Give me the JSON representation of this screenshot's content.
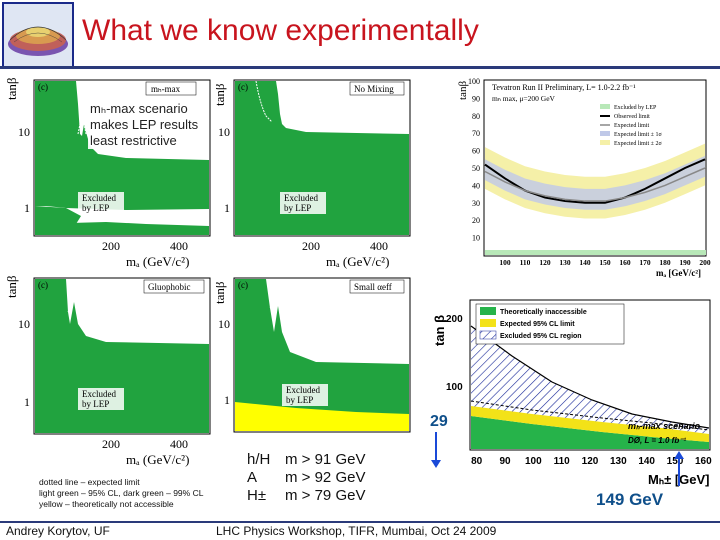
{
  "slide": {
    "title": "What we know experimentally",
    "annotation_lines": [
      "mₕ-max scenario",
      "makes LEP results",
      "least restrictive"
    ],
    "legend_note_lines": [
      "dotted line – expected limit",
      "light green – 95% CL, dark green – 99% CL",
      "yellow – theoretically not accessible"
    ],
    "mass_limits": [
      {
        "particle": "h/H",
        "limit": "m > 91 GeV"
      },
      {
        "particle": "A",
        "limit": "m > 92 GeV"
      },
      {
        "particle": "H±",
        "limit": "m > 79 GeV"
      }
    ],
    "callout_low": "29",
    "callout_high": "149 GeV",
    "footer_left": "Andrey Korytov, UF",
    "footer_center": "LHC Physics Workshop, TIFR, Mumbai, Oct 24 2009"
  },
  "lep_panels": [
    {
      "label": "(c)",
      "tag": "mₕ-max",
      "ylabel": "tanβ",
      "xlabel": "mₐ (GeV/c²)",
      "excluded": [
        "Excluded",
        "by LEP"
      ],
      "yticks": [
        "10",
        "1"
      ],
      "xticks": [
        "200",
        "400"
      ]
    },
    {
      "label": "(c)",
      "tag": "No Mixing",
      "ylabel": "tanβ",
      "xlabel": "mₐ (GeV/c²)",
      "excluded": [
        "Excluded",
        "by LEP"
      ],
      "yticks": [
        "10",
        "1"
      ],
      "xticks": [
        "200",
        "400"
      ]
    },
    {
      "label": "(c)",
      "tag": "Gluophobic",
      "ylabel": "tanβ",
      "xlabel": "mₐ (GeV/c²)",
      "excluded": [
        "Excluded",
        "by LEP"
      ],
      "yticks": [
        "10",
        "1"
      ],
      "xticks": [
        "200",
        "400"
      ]
    },
    {
      "label": "(c)",
      "tag": "Small αeff",
      "ylabel": "tanβ",
      "xlabel": "mₐ (GeV/c²)",
      "excluded": [
        "Excluded",
        "by LEP"
      ],
      "yticks": [
        "10",
        "1"
      ],
      "xticks": [
        "200",
        "400"
      ]
    }
  ],
  "tevatron_plot": {
    "title": "Tevatron Run II Preliminary, L= 1.0-2.2 fb⁻¹",
    "subtitle": "mₕ max, μ=200 GeV",
    "ylabel": "tanβ",
    "xlabel": "mₐ [GeV/c²]",
    "legend": [
      "Excluded by LEP",
      "Observed limit",
      "Expected limit",
      "Expected limit ± 1σ",
      "Expected limit ± 2σ"
    ],
    "chart_data": {
      "type": "line",
      "x": [
        90,
        100,
        110,
        120,
        130,
        140,
        150,
        160,
        170,
        180,
        190,
        200
      ],
      "series": [
        {
          "name": "Observed limit",
          "values": [
            52,
            44,
            37,
            33,
            31,
            30,
            30,
            33,
            38,
            44,
            50,
            55
          ]
        },
        {
          "name": "Expected limit",
          "values": [
            48,
            42,
            37,
            34,
            32,
            31,
            31,
            33,
            36,
            40,
            45,
            50
          ]
        }
      ],
      "xticks": [
        "100",
        "110",
        "120",
        "130",
        "140",
        "150",
        "160",
        "170",
        "180",
        "190",
        "200"
      ],
      "yticks": [
        "100",
        "90",
        "80",
        "70",
        "60",
        "50",
        "40",
        "30",
        "20",
        "10"
      ],
      "ylim": [
        0,
        100
      ],
      "xlim": [
        90,
        200
      ]
    }
  },
  "dzero_plot": {
    "ylabel": "tan β",
    "xlabel": "Mₕ± [GeV]",
    "legend": [
      "Theoretically inaccessible",
      "Expected 95% CL limit",
      "Excluded 95% CL region"
    ],
    "scenario": "mₕ-max scenario",
    "experiment": "DØ, L = 1.0 fb⁻¹",
    "chart_data": {
      "type": "area",
      "xticks": [
        "80",
        "90",
        "100",
        "110",
        "120",
        "130",
        "140",
        "150",
        "160"
      ],
      "yticks": [
        "200",
        "100"
      ],
      "xlim": [
        78,
        162
      ],
      "ylim": [
        0,
        230
      ]
    }
  }
}
